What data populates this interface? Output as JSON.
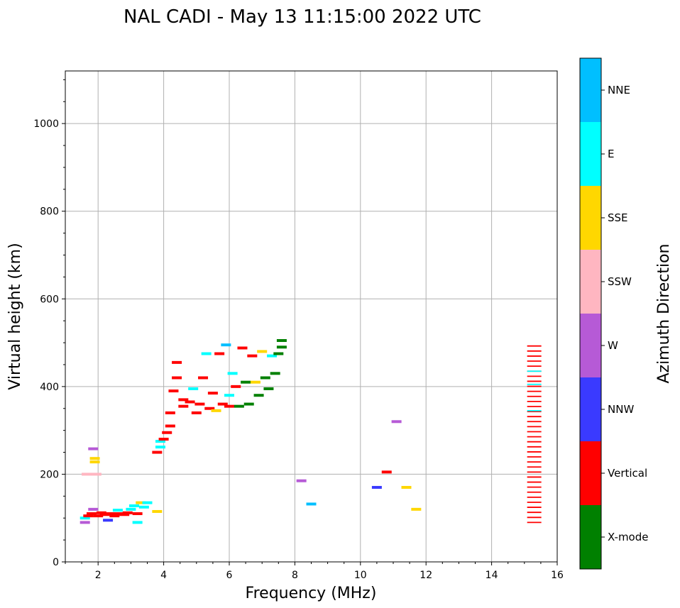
{
  "chart_data": {
    "type": "scatter",
    "title": "NAL CADI - May 13 11:15:00 2022 UTC",
    "xlabel": "Frequency (MHz)",
    "ylabel": "Virtual height (km)",
    "xlim": [
      1,
      16
    ],
    "ylim": [
      0,
      1120
    ],
    "x_ticks": [
      2,
      4,
      6,
      8,
      10,
      12,
      14,
      16
    ],
    "y_ticks": [
      0,
      200,
      400,
      600,
      800,
      1000
    ],
    "grid": true,
    "colorbar": {
      "label": "Azimuth Direction",
      "categories": [
        "X-mode",
        "Vertical",
        "NNW",
        "W",
        "SSW",
        "SSE",
        "E",
        "NNE"
      ],
      "colors": {
        "X-mode": "#008000",
        "Vertical": "#ff0000",
        "NNW": "#3a3aff",
        "W": "#b65ad6",
        "SSW": "#ffb6c1",
        "SSE": "#ffd700",
        "E": "#00ffff",
        "NNE": "#00bfff"
      }
    },
    "points": [
      {
        "x": 1.6,
        "y": 90,
        "dir": "W"
      },
      {
        "x": 1.6,
        "y": 100,
        "dir": "E"
      },
      {
        "x": 1.7,
        "y": 105,
        "dir": "Vertical"
      },
      {
        "x": 1.8,
        "y": 110,
        "dir": "Vertical"
      },
      {
        "x": 1.85,
        "y": 120,
        "dir": "W"
      },
      {
        "x": 1.9,
        "y": 228,
        "dir": "SSE"
      },
      {
        "x": 1.9,
        "y": 236,
        "dir": "SSE"
      },
      {
        "x": 1.85,
        "y": 258,
        "dir": "W"
      },
      {
        "x": 1.65,
        "y": 200,
        "dir": "SSW"
      },
      {
        "x": 1.95,
        "y": 200,
        "dir": "SSW"
      },
      {
        "x": 2.0,
        "y": 105,
        "dir": "Vertical"
      },
      {
        "x": 2.1,
        "y": 112,
        "dir": "Vertical"
      },
      {
        "x": 2.2,
        "y": 108,
        "dir": "Vertical"
      },
      {
        "x": 2.3,
        "y": 95,
        "dir": "NNW"
      },
      {
        "x": 2.4,
        "y": 110,
        "dir": "Vertical"
      },
      {
        "x": 2.5,
        "y": 105,
        "dir": "Vertical"
      },
      {
        "x": 2.6,
        "y": 118,
        "dir": "E"
      },
      {
        "x": 2.7,
        "y": 110,
        "dir": "Vertical"
      },
      {
        "x": 2.8,
        "y": 108,
        "dir": "Vertical"
      },
      {
        "x": 2.9,
        "y": 112,
        "dir": "Vertical"
      },
      {
        "x": 3.0,
        "y": 120,
        "dir": "E"
      },
      {
        "x": 3.1,
        "y": 128,
        "dir": "E"
      },
      {
        "x": 3.2,
        "y": 110,
        "dir": "Vertical"
      },
      {
        "x": 3.2,
        "y": 90,
        "dir": "E"
      },
      {
        "x": 3.3,
        "y": 135,
        "dir": "SSE"
      },
      {
        "x": 3.4,
        "y": 125,
        "dir": "E"
      },
      {
        "x": 3.5,
        "y": 135,
        "dir": "E"
      },
      {
        "x": 3.8,
        "y": 115,
        "dir": "SSE"
      },
      {
        "x": 3.8,
        "y": 250,
        "dir": "Vertical"
      },
      {
        "x": 3.9,
        "y": 262,
        "dir": "E"
      },
      {
        "x": 3.9,
        "y": 275,
        "dir": "E"
      },
      {
        "x": 4.0,
        "y": 280,
        "dir": "Vertical"
      },
      {
        "x": 4.1,
        "y": 295,
        "dir": "Vertical"
      },
      {
        "x": 4.2,
        "y": 310,
        "dir": "Vertical"
      },
      {
        "x": 4.2,
        "y": 340,
        "dir": "Vertical"
      },
      {
        "x": 4.3,
        "y": 390,
        "dir": "Vertical"
      },
      {
        "x": 4.4,
        "y": 420,
        "dir": "Vertical"
      },
      {
        "x": 4.4,
        "y": 455,
        "dir": "Vertical"
      },
      {
        "x": 4.6,
        "y": 370,
        "dir": "Vertical"
      },
      {
        "x": 4.6,
        "y": 355,
        "dir": "Vertical"
      },
      {
        "x": 4.8,
        "y": 365,
        "dir": "Vertical"
      },
      {
        "x": 4.9,
        "y": 395,
        "dir": "E"
      },
      {
        "x": 5.0,
        "y": 340,
        "dir": "Vertical"
      },
      {
        "x": 5.1,
        "y": 360,
        "dir": "Vertical"
      },
      {
        "x": 5.2,
        "y": 420,
        "dir": "Vertical"
      },
      {
        "x": 5.3,
        "y": 475,
        "dir": "E"
      },
      {
        "x": 5.4,
        "y": 350,
        "dir": "Vertical"
      },
      {
        "x": 5.5,
        "y": 385,
        "dir": "Vertical"
      },
      {
        "x": 5.6,
        "y": 345,
        "dir": "SSE"
      },
      {
        "x": 5.7,
        "y": 475,
        "dir": "Vertical"
      },
      {
        "x": 5.8,
        "y": 360,
        "dir": "Vertical"
      },
      {
        "x": 5.9,
        "y": 495,
        "dir": "NNE"
      },
      {
        "x": 6.0,
        "y": 380,
        "dir": "E"
      },
      {
        "x": 6.0,
        "y": 355,
        "dir": "Vertical"
      },
      {
        "x": 6.1,
        "y": 430,
        "dir": "E"
      },
      {
        "x": 6.2,
        "y": 400,
        "dir": "Vertical"
      },
      {
        "x": 6.3,
        "y": 355,
        "dir": "X-mode"
      },
      {
        "x": 6.4,
        "y": 488,
        "dir": "Vertical"
      },
      {
        "x": 6.5,
        "y": 410,
        "dir": "X-mode"
      },
      {
        "x": 6.6,
        "y": 360,
        "dir": "X-mode"
      },
      {
        "x": 6.7,
        "y": 470,
        "dir": "Vertical"
      },
      {
        "x": 6.8,
        "y": 410,
        "dir": "SSE"
      },
      {
        "x": 6.9,
        "y": 380,
        "dir": "X-mode"
      },
      {
        "x": 7.0,
        "y": 480,
        "dir": "SSE"
      },
      {
        "x": 7.1,
        "y": 420,
        "dir": "X-mode"
      },
      {
        "x": 7.2,
        "y": 395,
        "dir": "X-mode"
      },
      {
        "x": 7.3,
        "y": 470,
        "dir": "E"
      },
      {
        "x": 7.4,
        "y": 430,
        "dir": "X-mode"
      },
      {
        "x": 7.5,
        "y": 475,
        "dir": "X-mode"
      },
      {
        "x": 7.6,
        "y": 505,
        "dir": "X-mode"
      },
      {
        "x": 7.6,
        "y": 490,
        "dir": "X-mode"
      },
      {
        "x": 8.2,
        "y": 185,
        "dir": "W"
      },
      {
        "x": 8.5,
        "y": 132,
        "dir": "NNE"
      },
      {
        "x": 10.5,
        "y": 170,
        "dir": "NNW"
      },
      {
        "x": 10.8,
        "y": 205,
        "dir": "Vertical"
      },
      {
        "x": 11.1,
        "y": 320,
        "dir": "W"
      },
      {
        "x": 11.4,
        "y": 170,
        "dir": "SSE"
      },
      {
        "x": 11.7,
        "y": 120,
        "dir": "SSE"
      }
    ],
    "vertical_column": {
      "x": 15.3,
      "y_from": 90,
      "y_to": 495,
      "dir": "Vertical",
      "accent_heights": [
        345,
        405,
        435
      ],
      "accent_dir": "E"
    }
  }
}
